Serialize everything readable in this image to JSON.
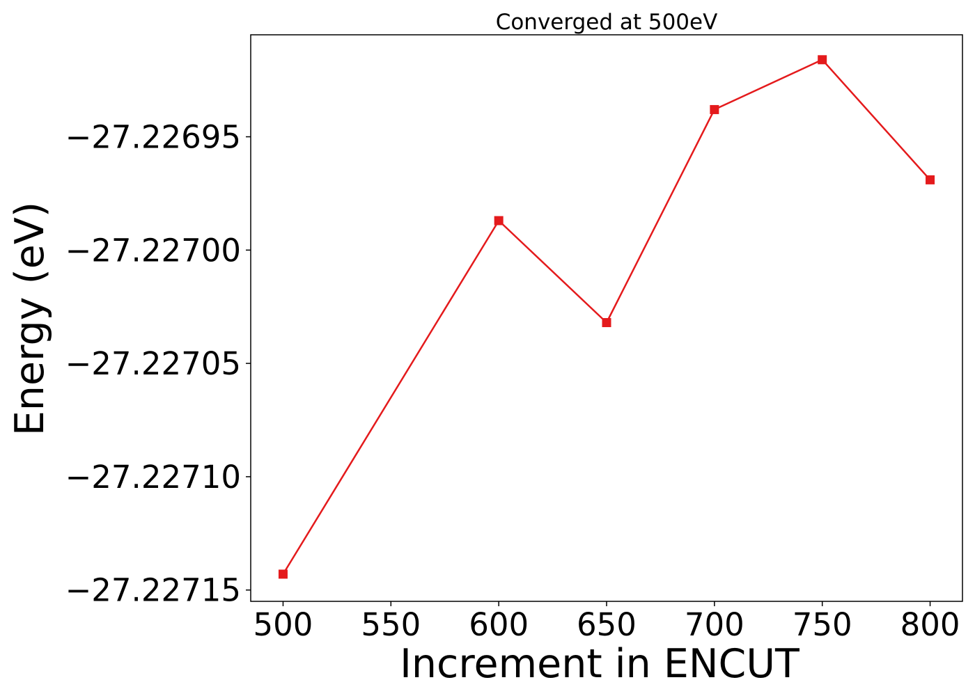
{
  "chart_data": {
    "type": "line",
    "title": "Converged at 500eV",
    "xlabel": "Increment in ENCUT",
    "ylabel": "Energy (eV)",
    "x": [
      500,
      600,
      650,
      700,
      750,
      800
    ],
    "series": [
      {
        "values": [
          -27.227143,
          -27.226987,
          -27.227032,
          -27.226938,
          -27.226916,
          -27.226969
        ],
        "color": "#e41a1c",
        "marker": "square"
      }
    ],
    "xlim": [
      485,
      815
    ],
    "ylim": [
      -27.227155,
      -27.226905
    ],
    "xticks": [
      500,
      550,
      600,
      650,
      700,
      750,
      800
    ],
    "xtick_labels": [
      "500",
      "550",
      "600",
      "650",
      "700",
      "750",
      "800"
    ],
    "yticks": [
      -27.22715,
      -27.2271,
      -27.22705,
      -27.227,
      -27.22695
    ],
    "ytick_labels": [
      "−27.22715",
      "−27.22710",
      "−27.22705",
      "−27.22700",
      "−27.22695"
    ],
    "grid": false,
    "legend": "none"
  }
}
